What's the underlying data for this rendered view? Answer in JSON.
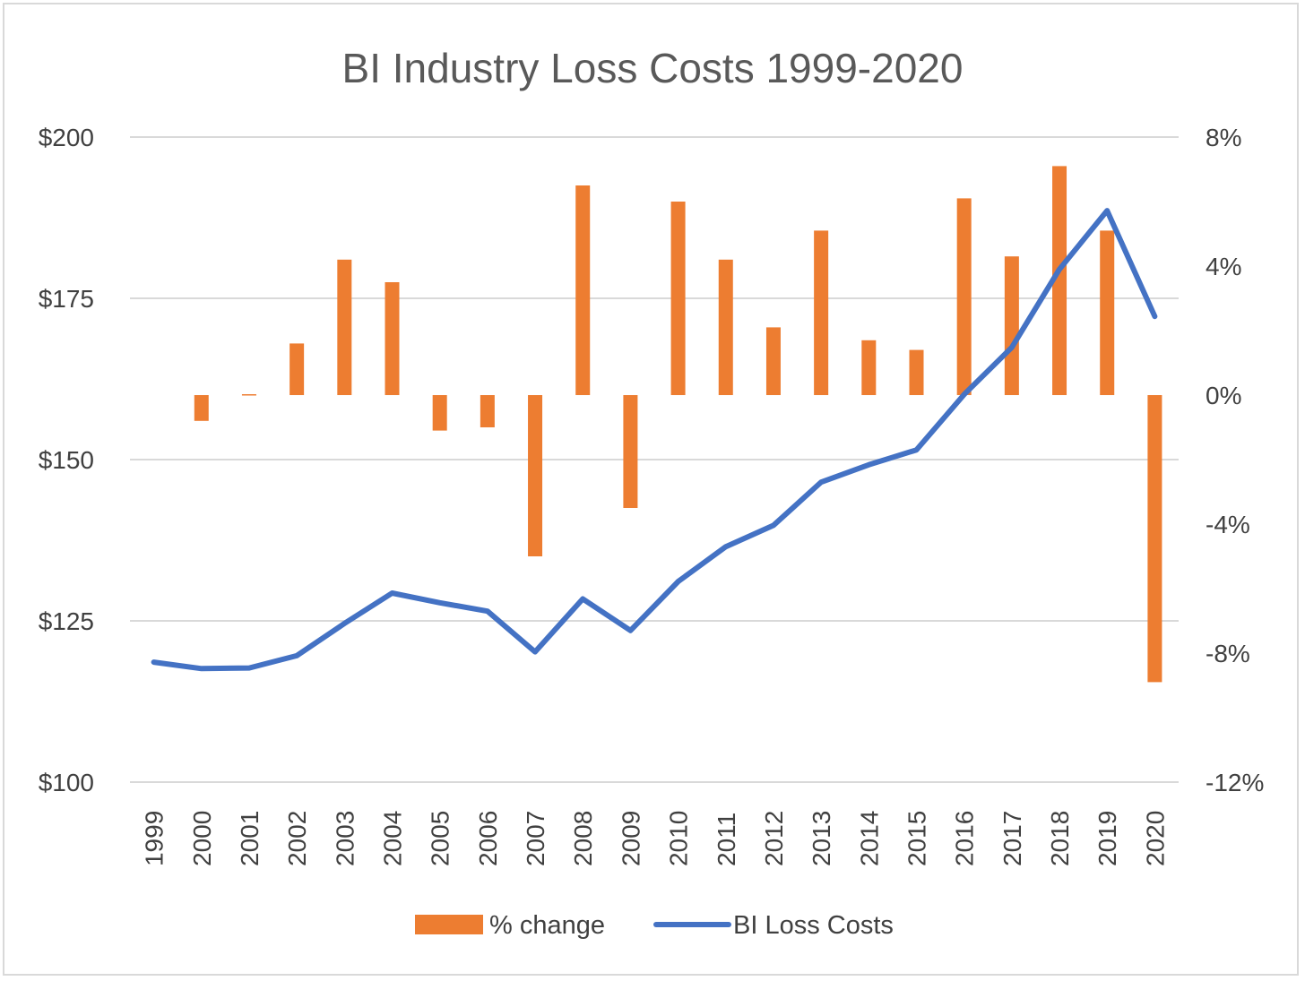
{
  "chart_data": {
    "type": "bar",
    "title": "BI Industry Loss Costs 1999-2020",
    "categories": [
      "1999",
      "2000",
      "2001",
      "2002",
      "2003",
      "2004",
      "2005",
      "2006",
      "2007",
      "2008",
      "2009",
      "2010",
      "2011",
      "2012",
      "2013",
      "2014",
      "2015",
      "2016",
      "2017",
      "2018",
      "2019",
      "2020"
    ],
    "series": [
      {
        "name": "% change",
        "type": "bar",
        "axis": "right",
        "color": "#ED7D31",
        "values": [
          null,
          -0.8,
          0.0,
          1.6,
          4.2,
          3.5,
          -1.1,
          -1.0,
          -5.0,
          6.5,
          -3.5,
          6.0,
          4.2,
          2.1,
          5.1,
          1.7,
          1.4,
          6.1,
          4.3,
          7.1,
          5.1,
          -8.9
        ]
      },
      {
        "name": "BI Loss Costs",
        "type": "line",
        "axis": "left",
        "color": "#4472C4",
        "values": [
          118.6,
          117.6,
          117.7,
          119.6,
          124.6,
          129.3,
          127.8,
          126.5,
          120.2,
          128.4,
          123.5,
          131.1,
          136.5,
          139.8,
          146.5,
          149.2,
          151.5,
          160.1,
          167.4,
          179.5,
          188.6,
          172.2
        ]
      }
    ],
    "left_axis": {
      "ticks": [
        "$200",
        "$175",
        "$150",
        "$125",
        "$100"
      ],
      "ylim": [
        100,
        200
      ]
    },
    "right_axis": {
      "ticks": [
        "8%",
        "4%",
        "0%",
        "-4%",
        "-8%",
        "-12%"
      ],
      "ylim": [
        -12,
        8
      ]
    },
    "grid": true,
    "legend": "bottom"
  }
}
